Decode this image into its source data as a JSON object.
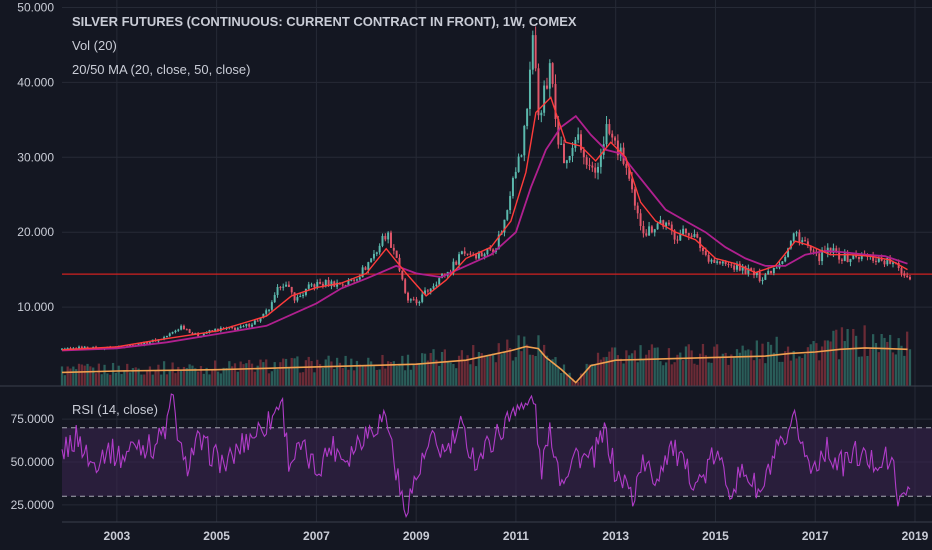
{
  "colors": {
    "background": "#141722",
    "grid": "#262a36",
    "text": "#c9ccd6",
    "candle_up": "#5bb9ad",
    "candle_down": "#e0566a",
    "ma20": "#ff3b3b",
    "ma50": "#b0208f",
    "volume_ma": "#f0a050",
    "hline": "#d02020",
    "rsi": "#b03cc8",
    "rsi_band": "#3a2450",
    "rsi_bounds": "#c9ccd6"
  },
  "legend": {
    "title": "SILVER FUTURES (CONTINUOUS: CURRENT CONTRACT IN FRONT), 1W, COMEX",
    "volume": "Vol (20)",
    "ma": "20/50 MA (20, close, 50, close)",
    "rsi": "RSI (14, close)"
  },
  "chart_data": [
    {
      "type": "line",
      "panel": "price",
      "interval": "1W",
      "ylim": [
        0,
        51
      ],
      "y_ticks": [
        "10.000",
        "20.000",
        "30.000",
        "40.000",
        "50.000"
      ],
      "y_tick_values": [
        10,
        20,
        30,
        40,
        50
      ],
      "x_ticks": [
        "2003",
        "2005",
        "2007",
        "2009",
        "2011",
        "2013",
        "2015",
        "2017",
        "2019"
      ],
      "x_tick_values": [
        2003,
        2005,
        2007,
        2009,
        2011,
        2013,
        2015,
        2017,
        2019
      ],
      "xlim": [
        2001.9,
        2018.9
      ],
      "horizontal_line": 14.4,
      "series": [
        {
          "role": "close",
          "x": [
            2001.9,
            2002.3,
            2002.7,
            2003.0,
            2003.5,
            2003.9,
            2004.1,
            2004.3,
            2004.6,
            2005.0,
            2005.5,
            2005.9,
            2006.1,
            2006.3,
            2006.6,
            2006.9,
            2007.2,
            2007.6,
            2007.9,
            2008.2,
            2008.4,
            2008.6,
            2008.8,
            2009.0,
            2009.4,
            2009.7,
            2009.9,
            2010.3,
            2010.6,
            2010.8,
            2010.95,
            2011.1,
            2011.25,
            2011.32,
            2011.45,
            2011.6,
            2011.7,
            2011.85,
            2012.0,
            2012.2,
            2012.4,
            2012.6,
            2012.8,
            2013.0,
            2013.2,
            2013.4,
            2013.6,
            2013.9,
            2014.2,
            2014.5,
            2014.8,
            2015.0,
            2015.3,
            2015.6,
            2015.9,
            2016.2,
            2016.4,
            2016.6,
            2016.8,
            2017.0,
            2017.3,
            2017.6,
            2017.9,
            2018.2,
            2018.5,
            2018.7,
            2018.85
          ],
          "values": [
            4.3,
            4.6,
            4.5,
            4.7,
            5.1,
            5.8,
            6.5,
            7.5,
            6.2,
            7.0,
            7.2,
            8.5,
            10.2,
            13.5,
            11.0,
            12.9,
            13.2,
            13.1,
            14.6,
            17.5,
            20.0,
            17.0,
            11.0,
            10.5,
            13.5,
            15.0,
            17.5,
            17.0,
            18.3,
            22.0,
            28.5,
            30.0,
            38.0,
            48.0,
            36.0,
            39.0,
            42.0,
            33.0,
            28.5,
            33.0,
            29.0,
            27.0,
            34.0,
            31.5,
            29.0,
            22.5,
            20.0,
            21.5,
            19.5,
            20.2,
            17.0,
            16.0,
            15.5,
            15.0,
            13.9,
            15.5,
            17.0,
            20.0,
            18.5,
            16.5,
            17.5,
            16.5,
            16.8,
            16.5,
            16.0,
            15.0,
            14.1
          ]
        },
        {
          "role": "ma20",
          "x": [
            2001.9,
            2003.0,
            2004.0,
            2005.0,
            2006.0,
            2006.5,
            2007.0,
            2007.5,
            2008.0,
            2008.4,
            2008.8,
            2009.2,
            2009.6,
            2010.0,
            2010.5,
            2010.9,
            2011.2,
            2011.4,
            2011.7,
            2012.0,
            2012.3,
            2012.6,
            2012.9,
            2013.2,
            2013.5,
            2013.8,
            2014.2,
            2014.6,
            2015.0,
            2015.4,
            2015.8,
            2016.2,
            2016.6,
            2016.9,
            2017.3,
            2017.7,
            2018.1,
            2018.5,
            2018.85
          ],
          "values": [
            4.3,
            4.7,
            5.8,
            6.8,
            8.8,
            11.5,
            12.6,
            13.2,
            14.5,
            17.8,
            14.5,
            11.5,
            13.6,
            16.5,
            18.0,
            21.5,
            28.0,
            36.0,
            38.0,
            32.0,
            31.5,
            29.5,
            32.0,
            30.0,
            24.0,
            21.5,
            20.0,
            19.0,
            16.5,
            15.8,
            14.6,
            15.5,
            18.8,
            18.2,
            17.0,
            17.0,
            16.8,
            16.3,
            15.0
          ]
        },
        {
          "role": "ma50",
          "x": [
            2001.9,
            2003.0,
            2004.0,
            2005.0,
            2006.0,
            2007.0,
            2007.5,
            2008.0,
            2008.6,
            2009.0,
            2009.5,
            2010.0,
            2010.5,
            2011.0,
            2011.3,
            2011.6,
            2011.9,
            2012.2,
            2012.5,
            2012.8,
            2013.1,
            2013.4,
            2013.7,
            2014.0,
            2014.4,
            2014.8,
            2015.2,
            2015.6,
            2016.0,
            2016.4,
            2016.8,
            2017.2,
            2017.6,
            2018.0,
            2018.4,
            2018.85
          ],
          "values": [
            4.2,
            4.5,
            5.3,
            6.4,
            7.5,
            10.5,
            12.5,
            13.8,
            15.5,
            14.5,
            14.0,
            15.5,
            17.0,
            20.0,
            26.0,
            31.0,
            34.0,
            35.5,
            33.0,
            31.0,
            30.5,
            28.0,
            25.5,
            23.0,
            21.5,
            20.0,
            18.0,
            16.5,
            15.5,
            15.5,
            17.0,
            17.5,
            17.3,
            17.0,
            16.8,
            15.8
          ]
        }
      ]
    },
    {
      "type": "bar",
      "panel": "volume",
      "ylim": [
        0,
        100
      ],
      "volume_ma_line": {
        "x": [
          2001.9,
          2003.0,
          2005.0,
          2006.5,
          2008.0,
          2009.0,
          2010.0,
          2010.9,
          2011.2,
          2011.45,
          2011.6,
          2011.9,
          2012.2,
          2012.5,
          2013.0,
          2014.0,
          2015.0,
          2016.0,
          2016.5,
          2017.0,
          2017.5,
          2018.0,
          2018.85
        ],
        "values": [
          20,
          22,
          24,
          27,
          30,
          32,
          38,
          52,
          58,
          55,
          42,
          25,
          5,
          30,
          38,
          40,
          42,
          44,
          48,
          50,
          54,
          56,
          54
        ]
      }
    },
    {
      "type": "line",
      "panel": "rsi",
      "ylim": [
        15,
        92
      ],
      "y_ticks": [
        "25.0000",
        "50.0000",
        "75.0000"
      ],
      "y_tick_values": [
        25,
        50,
        75
      ],
      "bands": [
        30,
        70
      ],
      "series": [
        {
          "role": "rsi",
          "x": [
            2001.9,
            2002.2,
            2002.5,
            2002.8,
            2003.1,
            2003.4,
            2003.7,
            2004.0,
            2004.1,
            2004.35,
            2004.6,
            2004.9,
            2005.2,
            2005.5,
            2005.8,
            2006.1,
            2006.3,
            2006.45,
            2006.7,
            2007.0,
            2007.3,
            2007.6,
            2007.9,
            2008.2,
            2008.4,
            2008.6,
            2008.75,
            2009.0,
            2009.3,
            2009.6,
            2009.9,
            2010.2,
            2010.5,
            2010.8,
            2011.0,
            2011.2,
            2011.35,
            2011.5,
            2011.7,
            2011.9,
            2012.2,
            2012.5,
            2012.8,
            2013.0,
            2013.2,
            2013.35,
            2013.5,
            2013.8,
            2014.1,
            2014.4,
            2014.7,
            2015.0,
            2015.3,
            2015.6,
            2015.9,
            2016.2,
            2016.45,
            2016.6,
            2016.9,
            2017.2,
            2017.5,
            2017.8,
            2018.1,
            2018.4,
            2018.6,
            2018.7,
            2018.85
          ],
          "values": [
            55,
            65,
            48,
            58,
            52,
            62,
            58,
            70,
            88,
            45,
            62,
            55,
            48,
            60,
            68,
            75,
            88,
            50,
            58,
            45,
            60,
            52,
            65,
            72,
            78,
            45,
            22,
            40,
            62,
            55,
            70,
            50,
            62,
            72,
            85,
            80,
            90,
            45,
            68,
            40,
            55,
            50,
            68,
            42,
            38,
            28,
            50,
            40,
            60,
            45,
            38,
            55,
            35,
            45,
            30,
            55,
            60,
            75,
            45,
            58,
            48,
            55,
            50,
            52,
            45,
            22,
            36
          ]
        }
      ]
    }
  ]
}
